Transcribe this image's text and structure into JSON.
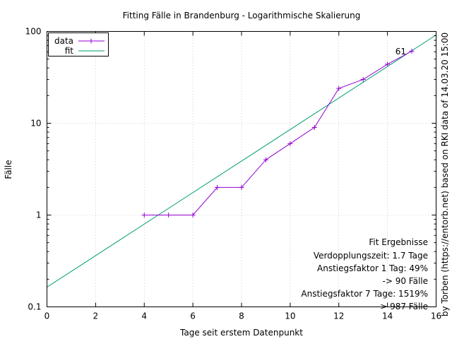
{
  "chart_data": {
    "type": "line",
    "title": "Fitting Fälle in Brandenburg - Logarithmische Skalierung",
    "xlabel": "Tage seit erstem Datenpunkt",
    "ylabel": "Fälle",
    "xlim": [
      0,
      16
    ],
    "ylim": [
      0.1,
      100
    ],
    "y_scale": "log",
    "grid": true,
    "legend_position": "top-left",
    "x_ticks": [
      "0",
      "2",
      "4",
      "6",
      "8",
      "10",
      "12",
      "14",
      "16"
    ],
    "y_ticks": [
      "0.1",
      "1",
      "10",
      "100"
    ],
    "series": [
      {
        "name": "data",
        "color": "#9400d3",
        "marker": "plus",
        "x": [
          4,
          5,
          6,
          7,
          8,
          9,
          10,
          11,
          12,
          13,
          14,
          15
        ],
        "y": [
          1,
          1,
          1,
          2,
          2,
          4,
          6,
          9,
          24,
          30,
          44,
          61
        ]
      },
      {
        "name": "fit",
        "color": "#009e73",
        "x": [
          0,
          16
        ],
        "y": [
          0.164,
          91.5
        ]
      }
    ],
    "annotations": [
      {
        "text": "61",
        "x": 15,
        "y": 61
      }
    ],
    "fit_results": {
      "lines": [
        "Fit Ergebnisse",
        "Verdopplungszeit: 1.7 Tage",
        "Anstiegsfaktor 1 Tag: 49%",
        "-> 90 Fälle",
        "Anstiegsfaktor 7 Tage: 1519%",
        "-> 987 Fälle"
      ]
    },
    "credit": "by Torben (https://entorb.net) based on RKI data of 14.03.20 15:00"
  }
}
